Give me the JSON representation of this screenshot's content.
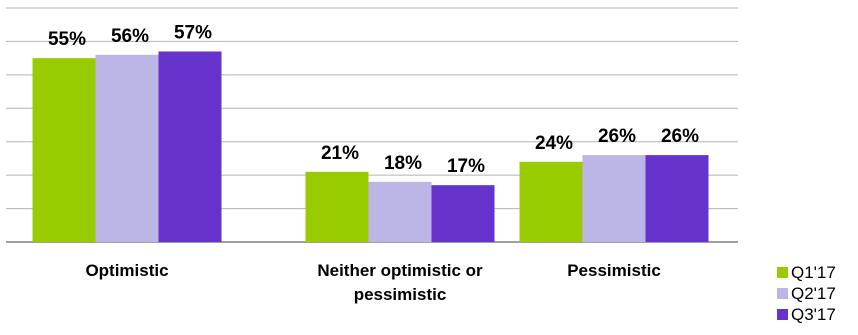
{
  "chart_data": {
    "type": "bar",
    "categories": [
      [
        "Optimistic"
      ],
      [
        "Neither optimistic or",
        "pessimistic"
      ],
      [
        "Pessimistic"
      ]
    ],
    "series": [
      {
        "name": "Q1'17",
        "color": "#99cc00",
        "values": [
          55,
          21,
          24
        ],
        "labels": [
          "55%",
          "21%",
          "24%"
        ]
      },
      {
        "name": "Q2'17",
        "color": "#bcb6e6",
        "values": [
          56,
          18,
          26
        ],
        "labels": [
          "56%",
          "18%",
          "26%"
        ]
      },
      {
        "name": "Q3'17",
        "color": "#6633cc",
        "values": [
          57,
          17,
          26
        ],
        "labels": [
          "57%",
          "17%",
          "26%"
        ]
      }
    ],
    "ylim": [
      0,
      70
    ],
    "y_gridlines": [
      10,
      20,
      30,
      40,
      50,
      60,
      70
    ],
    "grid": true,
    "legend_position": "bottom-right",
    "gridline_color": "#b3b3b3",
    "axis_color": "#808080"
  }
}
